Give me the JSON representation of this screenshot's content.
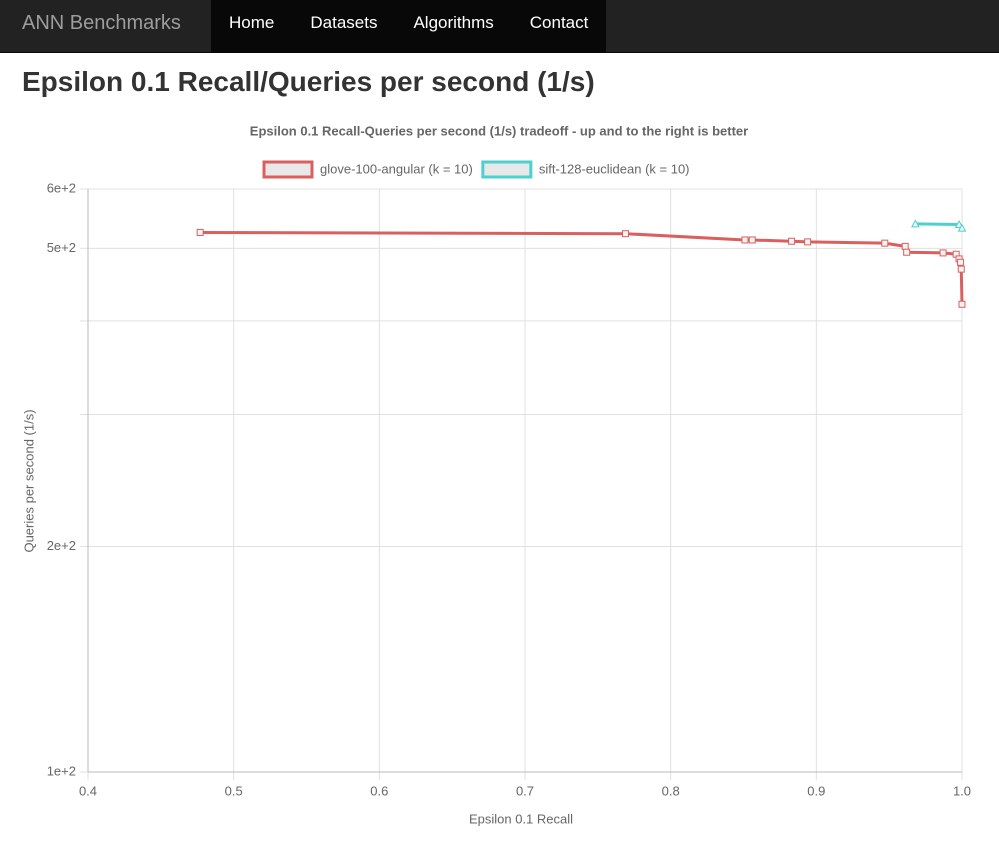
{
  "nav": {
    "brand": "ANN Benchmarks",
    "links": [
      "Home",
      "Datasets",
      "Algorithms",
      "Contact"
    ]
  },
  "heading": "Epsilon 0.1 Recall/Queries per second (1/s)",
  "chart_data": {
    "type": "line",
    "title": "Epsilon 0.1 Recall-Queries per second (1/s) tradeoff - up and to the right is better",
    "x_label": "Epsilon 0.1 Recall",
    "y_label": "Queries per second (1/s)",
    "xlim": [
      0.4,
      1.0
    ],
    "xticks": [
      0.4,
      0.5,
      0.6,
      0.7,
      0.8,
      0.9,
      {
        "value": 1.0,
        "label": "1.0"
      }
    ],
    "ylim": [
      100,
      600
    ],
    "log_y": true,
    "yticks": [
      {
        "value": 100,
        "label": "1e+2"
      },
      {
        "value": 200,
        "label": "2e+2"
      },
      {
        "value": 300,
        "label": null
      },
      {
        "value": 400,
        "label": null
      },
      {
        "value": 500,
        "label": "5e+2"
      },
      {
        "value": 600,
        "label": "6e+2"
      }
    ],
    "grid": true,
    "legend": "top",
    "series": [
      {
        "name": "glove-100-angular (k = 10)",
        "color": "#d9605f",
        "marker": "square",
        "x": [
          0.477,
          0.769,
          0.851,
          0.856,
          0.883,
          0.894,
          0.947,
          0.961,
          0.962,
          0.987,
          0.996,
          0.998,
          0.999,
          0.9995,
          1.0
        ],
        "values": [
          525,
          523,
          513,
          513,
          511,
          510,
          508,
          503,
          494,
          493,
          491,
          484,
          479,
          469,
          421
        ]
      },
      {
        "name": "sift-128-euclidean (k = 10)",
        "color": "#4dd0d0",
        "marker": "triangle",
        "x": [
          0.968,
          0.998,
          1.0
        ],
        "values": [
          539,
          538,
          532
        ]
      }
    ]
  }
}
